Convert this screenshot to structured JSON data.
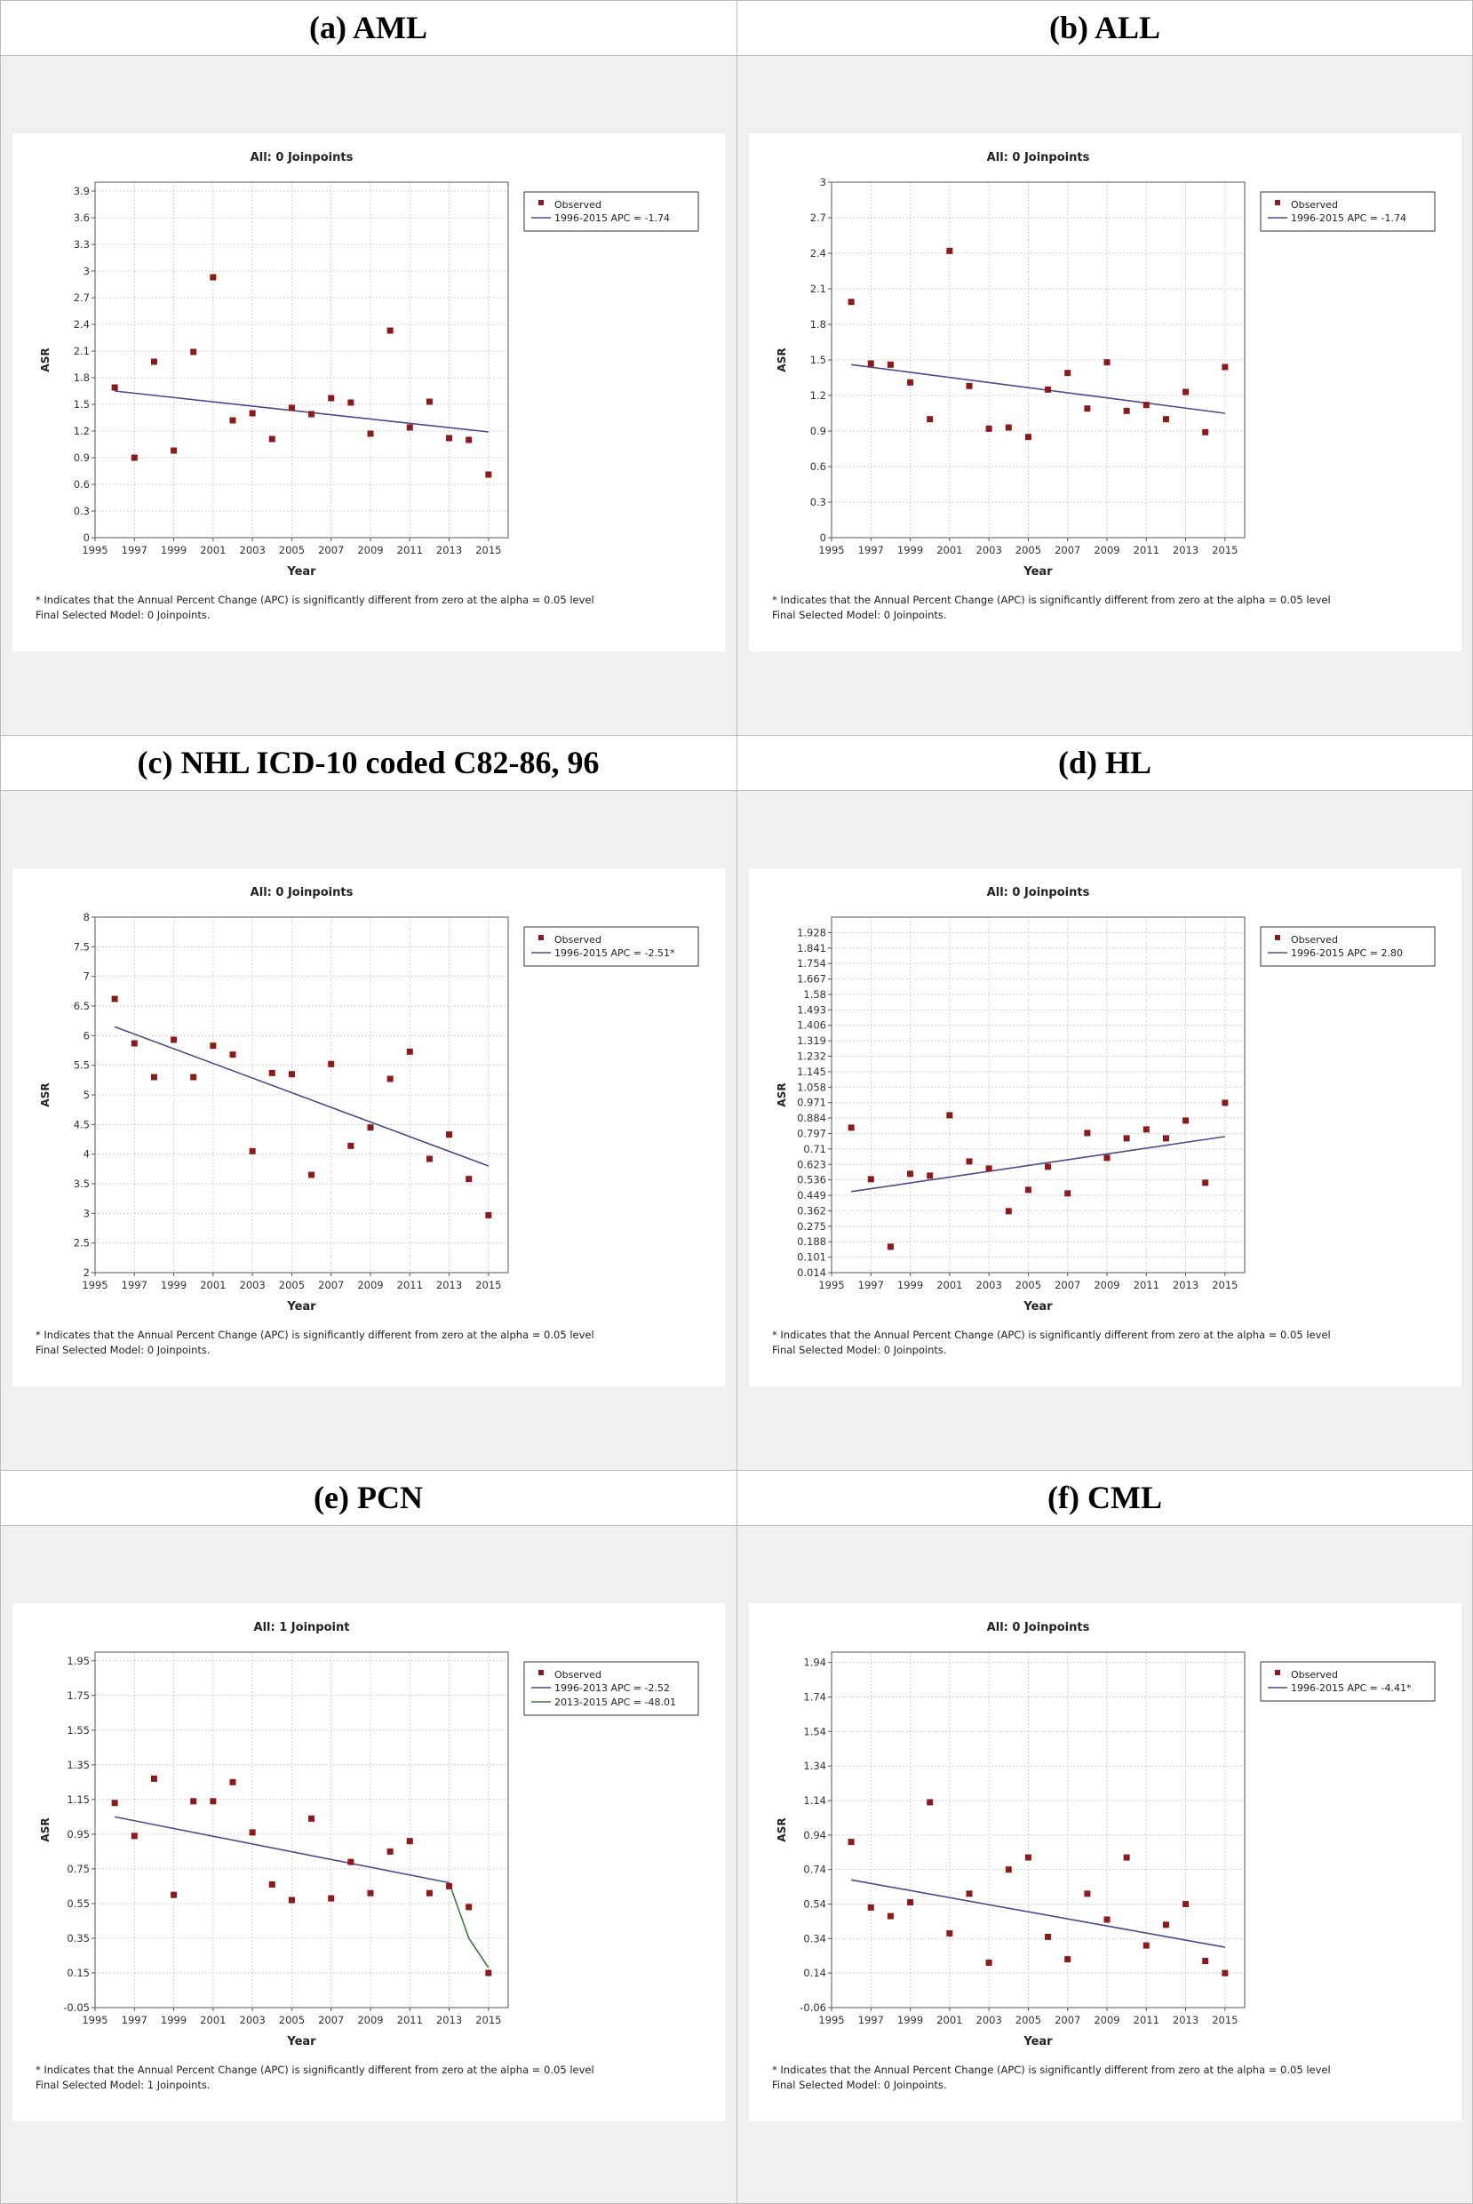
{
  "panels": [
    {
      "header": "(a) AML",
      "footnote": "* Indicates that the Annual Percent Change (APC) is significantly different from zero at the alpha = 0.05 level",
      "final_model": "Final Selected Model: 0 Joinpoints.",
      "chart_data": {
        "type": "scatter",
        "title": "All: 0 Joinpoints",
        "xlabel": "Year",
        "ylabel": "ASR",
        "xlim": [
          1995,
          2016
        ],
        "xticks": [
          1995,
          1997,
          1999,
          2001,
          2003,
          2005,
          2007,
          2009,
          2011,
          2013,
          2015
        ],
        "ylim": [
          0,
          4.0
        ],
        "yticks": [
          0,
          0.3,
          0.6,
          0.9,
          1.2,
          1.5,
          1.8,
          2.1,
          2.4,
          2.7,
          3,
          3.3,
          3.6,
          3.9
        ],
        "grid": true,
        "legend_position": "top-right",
        "colors": {
          "observed": "#8b1a1a",
          "fit": [
            "#4a4a8c"
          ]
        },
        "observed": {
          "name": "Observed",
          "x": [
            1996,
            1997,
            1998,
            1999,
            2000,
            2001,
            2002,
            2003,
            2004,
            2005,
            2006,
            2007,
            2008,
            2009,
            2010,
            2011,
            2012,
            2013,
            2014,
            2015
          ],
          "y": [
            1.69,
            0.9,
            1.98,
            0.98,
            2.09,
            2.93,
            1.32,
            1.4,
            1.11,
            1.46,
            1.39,
            1.57,
            1.52,
            1.17,
            2.33,
            1.24,
            1.53,
            1.12,
            1.1,
            0.71
          ]
        },
        "fits": [
          {
            "name": "1996-2015 APC = -1.74",
            "x": [
              1996,
              2015
            ],
            "y": [
              1.65,
              1.19
            ]
          }
        ]
      }
    },
    {
      "header": "(b) ALL",
      "footnote": "* Indicates that the Annual Percent Change (APC) is significantly different from zero at the alpha = 0.05 level",
      "final_model": "Final Selected Model: 0 Joinpoints.",
      "chart_data": {
        "type": "scatter",
        "title": "All: 0 Joinpoints",
        "xlabel": "Year",
        "ylabel": "ASR",
        "xlim": [
          1995,
          2016
        ],
        "xticks": [
          1995,
          1997,
          1999,
          2001,
          2003,
          2005,
          2007,
          2009,
          2011,
          2013,
          2015
        ],
        "ylim": [
          0,
          3.0
        ],
        "yticks": [
          0,
          0.3,
          0.6,
          0.9,
          1.2,
          1.5,
          1.8,
          2.1,
          2.4,
          2.7,
          3
        ],
        "grid": true,
        "legend_position": "top-right",
        "colors": {
          "observed": "#8b1a1a",
          "fit": [
            "#4a4a8c"
          ]
        },
        "observed": {
          "name": "Observed",
          "x": [
            1996,
            1997,
            1998,
            1999,
            2000,
            2001,
            2002,
            2003,
            2004,
            2005,
            2006,
            2007,
            2008,
            2009,
            2010,
            2011,
            2012,
            2013,
            2014,
            2015
          ],
          "y": [
            1.99,
            1.47,
            1.46,
            1.31,
            1.0,
            2.42,
            1.28,
            0.92,
            0.93,
            0.85,
            1.25,
            1.39,
            1.09,
            1.48,
            1.07,
            1.12,
            1.0,
            1.23,
            0.89,
            1.44
          ]
        },
        "fits": [
          {
            "name": "1996-2015 APC = -1.74",
            "x": [
              1996,
              2015
            ],
            "y": [
              1.46,
              1.05
            ]
          }
        ]
      }
    },
    {
      "header": "(c) NHL ICD-10 coded C82-86, 96",
      "footnote": "* Indicates that the Annual Percent Change (APC) is significantly different from zero at the alpha = 0.05 level",
      "final_model": "Final Selected Model: 0 Joinpoints.",
      "chart_data": {
        "type": "scatter",
        "title": "All: 0 Joinpoints",
        "xlabel": "Year",
        "ylabel": "ASR",
        "xlim": [
          1995,
          2016
        ],
        "xticks": [
          1995,
          1997,
          1999,
          2001,
          2003,
          2005,
          2007,
          2009,
          2011,
          2013,
          2015
        ],
        "ylim": [
          2,
          8
        ],
        "yticks": [
          2,
          2.5,
          3,
          3.5,
          4,
          4.5,
          5,
          5.5,
          6,
          6.5,
          7,
          7.5,
          8
        ],
        "grid": true,
        "legend_position": "top-right",
        "colors": {
          "observed": "#8b1a1a",
          "fit": [
            "#4a4a8c"
          ]
        },
        "observed": {
          "name": "Observed",
          "x": [
            1996,
            1997,
            1998,
            1999,
            2000,
            2001,
            2002,
            2003,
            2004,
            2005,
            2006,
            2007,
            2008,
            2009,
            2010,
            2011,
            2012,
            2013,
            2014,
            2015
          ],
          "y": [
            6.62,
            5.87,
            5.3,
            5.93,
            5.3,
            5.83,
            5.68,
            4.05,
            5.37,
            5.35,
            3.65,
            5.52,
            4.14,
            4.45,
            5.27,
            5.73,
            3.92,
            4.33,
            3.58,
            2.97
          ]
        },
        "fits": [
          {
            "name": "1996-2015 APC = -2.51*",
            "x": [
              1996,
              2015
            ],
            "y": [
              6.15,
              3.8
            ]
          }
        ]
      }
    },
    {
      "header": "(d) HL",
      "footnote": "* Indicates that the Annual Percent Change (APC) is significantly different from zero at the alpha = 0.05 level",
      "final_model": "Final Selected Model: 0 Joinpoints.",
      "chart_data": {
        "type": "scatter",
        "title": "All: 0 Joinpoints",
        "xlabel": "Year",
        "ylabel": "ASR",
        "xlim": [
          1995,
          2016
        ],
        "xticks": [
          1995,
          1997,
          1999,
          2001,
          2003,
          2005,
          2007,
          2009,
          2011,
          2013,
          2015
        ],
        "ylim": [
          0.014,
          2.015
        ],
        "yticks": [
          0.014,
          0.101,
          0.188,
          0.275,
          0.362,
          0.449,
          0.536,
          0.623,
          0.71,
          0.797,
          0.884,
          0.971,
          1.058,
          1.145,
          1.232,
          1.319,
          1.406,
          1.493,
          1.58,
          1.667,
          1.754,
          1.841,
          1.928
        ],
        "grid": true,
        "legend_position": "top-right",
        "colors": {
          "observed": "#8b1a1a",
          "fit": [
            "#4a4a8c"
          ]
        },
        "observed": {
          "name": "Observed",
          "x": [
            1996,
            1997,
            1998,
            1999,
            2000,
            2001,
            2002,
            2003,
            2004,
            2005,
            2006,
            2007,
            2008,
            2009,
            2010,
            2011,
            2012,
            2013,
            2014,
            2015
          ],
          "y": [
            0.83,
            0.54,
            0.16,
            0.57,
            0.56,
            0.9,
            0.64,
            0.6,
            0.36,
            0.48,
            0.61,
            0.46,
            0.8,
            0.66,
            0.77,
            0.82,
            0.77,
            0.87,
            0.52,
            0.97
          ]
        },
        "fits": [
          {
            "name": "1996-2015 APC = 2.80",
            "x": [
              1996,
              2015
            ],
            "y": [
              0.47,
              0.78
            ]
          }
        ]
      }
    },
    {
      "header": "(e) PCN",
      "footnote": "* Indicates that the Annual Percent Change (APC) is significantly different from zero at the alpha = 0.05 level",
      "final_model": "Final Selected Model: 1 Joinpoints.",
      "chart_data": {
        "type": "scatter",
        "title": "All: 1 Joinpoint",
        "xlabel": "Year",
        "ylabel": "ASR",
        "xlim": [
          1995,
          2016
        ],
        "xticks": [
          1995,
          1997,
          1999,
          2001,
          2003,
          2005,
          2007,
          2009,
          2011,
          2013,
          2015
        ],
        "ylim": [
          -0.05,
          2.0
        ],
        "yticks": [
          -0.05,
          0.15,
          0.35,
          0.55,
          0.75,
          0.95,
          1.15,
          1.35,
          1.55,
          1.75,
          1.95
        ],
        "grid": true,
        "legend_position": "top-right",
        "colors": {
          "observed": "#8b1a1a",
          "fit": [
            "#4a4a8c",
            "#3f7a3f"
          ]
        },
        "observed": {
          "name": "Observed",
          "x": [
            1996,
            1997,
            1998,
            1999,
            2000,
            2001,
            2002,
            2003,
            2004,
            2005,
            2006,
            2007,
            2008,
            2009,
            2010,
            2011,
            2012,
            2013,
            2014,
            2015
          ],
          "y": [
            1.13,
            0.94,
            1.27,
            0.6,
            1.14,
            1.14,
            1.25,
            0.96,
            0.66,
            0.57,
            1.04,
            0.58,
            0.79,
            0.61,
            0.85,
            0.91,
            0.61,
            0.65,
            0.53,
            0.15
          ]
        },
        "fits": [
          {
            "name": "1996-2013 APC = -2.52",
            "x": [
              1996,
              2013
            ],
            "y": [
              1.05,
              0.67
            ]
          },
          {
            "name": "2013-2015 APC = -48.01",
            "x": [
              2013,
              2014,
              2015
            ],
            "y": [
              0.67,
              0.35,
              0.18
            ]
          }
        ]
      }
    },
    {
      "header": "(f) CML",
      "footnote": "* Indicates that the Annual Percent Change (APC) is significantly different from zero at the alpha = 0.05 level",
      "final_model": "Final Selected Model: 0 Joinpoints.",
      "chart_data": {
        "type": "scatter",
        "title": "All: 0 Joinpoints",
        "xlabel": "Year",
        "ylabel": "ASR",
        "xlim": [
          1995,
          2016
        ],
        "xticks": [
          1995,
          1997,
          1999,
          2001,
          2003,
          2005,
          2007,
          2009,
          2011,
          2013,
          2015
        ],
        "ylim": [
          -0.06,
          2.0
        ],
        "yticks": [
          -0.06,
          0.14,
          0.34,
          0.54,
          0.74,
          0.94,
          1.14,
          1.34,
          1.54,
          1.74,
          1.94
        ],
        "grid": true,
        "legend_position": "top-right",
        "colors": {
          "observed": "#8b1a1a",
          "fit": [
            "#4a4a8c"
          ]
        },
        "observed": {
          "name": "Observed",
          "x": [
            1996,
            1997,
            1998,
            1999,
            2000,
            2001,
            2002,
            2003,
            2004,
            2005,
            2006,
            2007,
            2008,
            2009,
            2010,
            2011,
            2012,
            2013,
            2014,
            2015
          ],
          "y": [
            0.9,
            0.52,
            0.47,
            0.55,
            1.13,
            0.37,
            0.6,
            0.2,
            0.74,
            0.81,
            0.35,
            0.22,
            0.6,
            0.45,
            0.81,
            0.3,
            0.42,
            0.54,
            0.21,
            0.14
          ]
        },
        "fits": [
          {
            "name": "1996-2015 APC = -4.41*",
            "x": [
              1996,
              2015
            ],
            "y": [
              0.68,
              0.29
            ]
          }
        ]
      }
    }
  ]
}
